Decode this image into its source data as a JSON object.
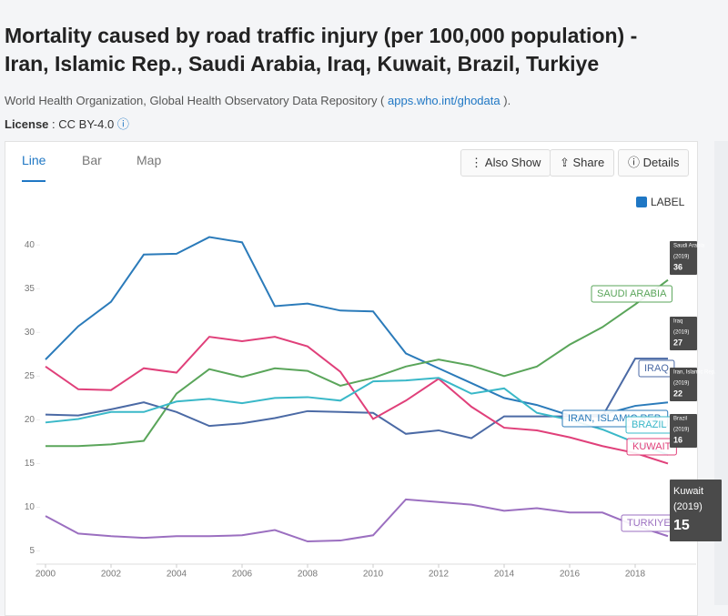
{
  "header": {
    "title": "Mortality caused by road traffic injury (per 100,000 population) - Iran, Islamic Rep., Saudi Arabia, Iraq, Kuwait, Brazil, Turkiye",
    "source_prefix": "World Health Organization, Global Health Observatory Data Repository (",
    "source_link": "apps.who.int/ghodata",
    "source_suffix": ").",
    "license_label": "License",
    "license_value": ": CC BY-4.0"
  },
  "tabs": [
    "Line",
    "Bar",
    "Map"
  ],
  "buttons": [
    "Also Show",
    "Share",
    "Details"
  ],
  "label_toggle": "LABEL",
  "chart_data": {
    "type": "line",
    "x": [
      2000,
      2001,
      2002,
      2003,
      2004,
      2005,
      2006,
      2007,
      2008,
      2009,
      2010,
      2011,
      2012,
      2013,
      2014,
      2015,
      2016,
      2017,
      2018,
      2019
    ],
    "xlim": [
      2000,
      2020
    ],
    "xticks": [
      2000,
      2002,
      2004,
      2006,
      2008,
      2010,
      2012,
      2014,
      2016,
      2018
    ],
    "ylim": [
      3.5,
      42
    ],
    "yticks": [
      5,
      10,
      15,
      20,
      25,
      30,
      35,
      40
    ],
    "end_label_year": "(2019)",
    "series": [
      {
        "name": "Iran, Islamic Rep.",
        "color": "#2b7bba",
        "end_box": true,
        "values": [
          26.9,
          30.7,
          33.5,
          38.9,
          39.0,
          40.9,
          40.3,
          33.0,
          33.3,
          32.5,
          32.4,
          27.6,
          25.9,
          24.2,
          22.5,
          21.7,
          20.5,
          20.6,
          21.6,
          22
        ]
      },
      {
        "name": "Saudi Arabia",
        "color": "#5aa55a",
        "end_box": true,
        "values": [
          17.0,
          17.0,
          17.2,
          17.6,
          23.0,
          25.8,
          24.9,
          25.9,
          25.6,
          23.9,
          24.8,
          26.1,
          26.9,
          26.2,
          25.0,
          26.1,
          28.6,
          30.6,
          33.2,
          36
        ]
      },
      {
        "name": "Iraq",
        "color": "#4b6aa5",
        "end_box": true,
        "values": [
          20.6,
          20.5,
          21.2,
          22.0,
          20.9,
          19.3,
          19.6,
          20.2,
          21.0,
          20.9,
          20.8,
          18.4,
          18.8,
          17.9,
          20.4,
          20.4,
          20.4,
          20.4,
          27.0,
          27
        ]
      },
      {
        "name": "Kuwait",
        "color": "#e0407a",
        "end_box": true,
        "values": [
          26.1,
          23.5,
          23.4,
          25.9,
          25.4,
          29.5,
          29.0,
          29.5,
          28.4,
          25.5,
          20.1,
          22.2,
          24.7,
          21.5,
          19.1,
          18.8,
          18.0,
          17.0,
          16.2,
          15
        ]
      },
      {
        "name": "Brazil",
        "color": "#3ab8c8",
        "end_box": true,
        "values": [
          19.7,
          20.1,
          20.9,
          20.9,
          22.1,
          22.4,
          21.9,
          22.5,
          22.6,
          22.2,
          24.4,
          24.5,
          24.8,
          23.0,
          23.6,
          20.8,
          20.0,
          18.9,
          17.4,
          16
        ]
      },
      {
        "name": "Turkiye",
        "color": "#9b6fc0",
        "end_box": false,
        "values": [
          9.0,
          7.0,
          6.7,
          6.5,
          6.7,
          6.7,
          6.8,
          7.4,
          6.1,
          6.2,
          6.8,
          10.9,
          10.6,
          10.3,
          9.6,
          9.9,
          9.4,
          9.4,
          7.9,
          6.7
        ]
      }
    ]
  }
}
